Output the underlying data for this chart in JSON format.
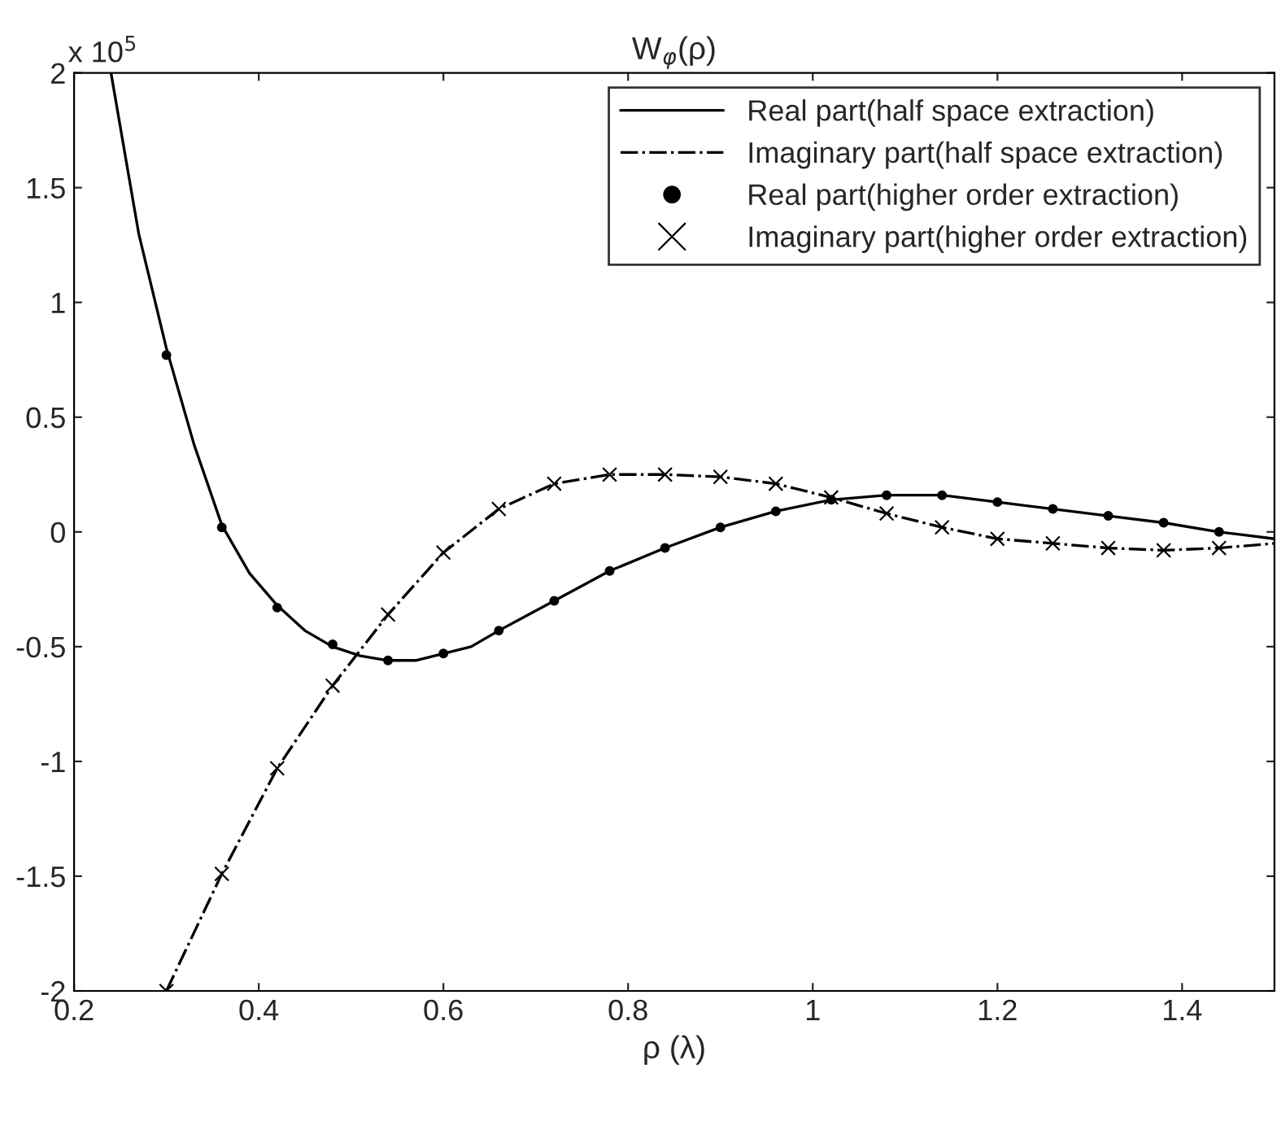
{
  "chart_data": {
    "type": "line",
    "title": "W$_{φ}$(ρ)",
    "xlabel": "ρ (λ)",
    "annotations": [
      "x 10$^{5}$"
    ],
    "xlim": [
      0.2,
      1.5
    ],
    "xticks": [
      0.2,
      0.4,
      0.6,
      0.8,
      1,
      1.2,
      1.4
    ],
    "ylim": [
      -2,
      2
    ],
    "yticks": [
      -2,
      -1.5,
      -1,
      -0.5,
      0,
      0.5,
      1,
      1.5,
      2
    ],
    "grid": false,
    "legend": "top right",
    "series": [
      {
        "name": "Real part(half space extraction)",
        "color": "#000000",
        "line_style": "solid",
        "marker": "none",
        "x": [
          0.24,
          0.27,
          0.3,
          0.33,
          0.36,
          0.39,
          0.42,
          0.45,
          0.48,
          0.51,
          0.54,
          0.57,
          0.6,
          0.63,
          0.66,
          0.72,
          0.78,
          0.84,
          0.9,
          0.96,
          1.02,
          1.08,
          1.14,
          1.2,
          1.26,
          1.32,
          1.38,
          1.44,
          1.5
        ],
        "values": [
          2.0,
          1.3,
          0.8,
          0.38,
          0.03,
          -0.18,
          -0.32,
          -0.43,
          -0.5,
          -0.54,
          -0.56,
          -0.56,
          -0.53,
          -0.5,
          -0.43,
          -0.3,
          -0.17,
          -0.07,
          0.02,
          0.09,
          0.14,
          0.16,
          0.16,
          0.13,
          0.1,
          0.07,
          0.04,
          0.0,
          -0.03
        ]
      },
      {
        "name": "Imaginary part(half space extraction)",
        "color": "#000000",
        "line_style": "dashdot",
        "marker": "none",
        "x": [
          0.3,
          0.36,
          0.42,
          0.48,
          0.54,
          0.6,
          0.66,
          0.72,
          0.78,
          0.84,
          0.9,
          0.96,
          1.02,
          1.08,
          1.14,
          1.2,
          1.26,
          1.32,
          1.38,
          1.44,
          1.5
        ],
        "values": [
          -2.0,
          -1.49,
          -1.03,
          -0.67,
          -0.36,
          -0.09,
          0.1,
          0.21,
          0.25,
          0.25,
          0.24,
          0.21,
          0.15,
          0.08,
          0.02,
          -0.03,
          -0.05,
          -0.07,
          -0.08,
          -0.07,
          -0.05
        ]
      },
      {
        "name": "Real part(higher order extraction)",
        "type": "scatter",
        "color": "#000000",
        "marker": "circle",
        "x": [
          0.3,
          0.36,
          0.42,
          0.48,
          0.54,
          0.6,
          0.66,
          0.72,
          0.78,
          0.84,
          0.9,
          0.96,
          1.02,
          1.08,
          1.14,
          1.2,
          1.26,
          1.32,
          1.38,
          1.44
        ],
        "values": [
          0.77,
          0.02,
          -0.33,
          -0.49,
          -0.56,
          -0.53,
          -0.43,
          -0.3,
          -0.17,
          -0.07,
          0.02,
          0.09,
          0.14,
          0.16,
          0.16,
          0.13,
          0.1,
          0.07,
          0.04,
          0.0
        ]
      },
      {
        "name": "Imaginary part(higher order extraction)",
        "type": "scatter",
        "color": "#000000",
        "marker": "cross",
        "x": [
          0.3,
          0.36,
          0.42,
          0.48,
          0.54,
          0.6,
          0.66,
          0.72,
          0.78,
          0.84,
          0.9,
          0.96,
          1.02,
          1.08,
          1.14,
          1.2,
          1.26,
          1.32,
          1.38,
          1.44
        ],
        "values": [
          -2.0,
          -1.49,
          -1.03,
          -0.67,
          -0.36,
          -0.09,
          0.1,
          0.21,
          0.25,
          0.25,
          0.24,
          0.21,
          0.15,
          0.08,
          0.02,
          -0.03,
          -0.05,
          -0.07,
          -0.08,
          -0.07
        ]
      }
    ]
  }
}
